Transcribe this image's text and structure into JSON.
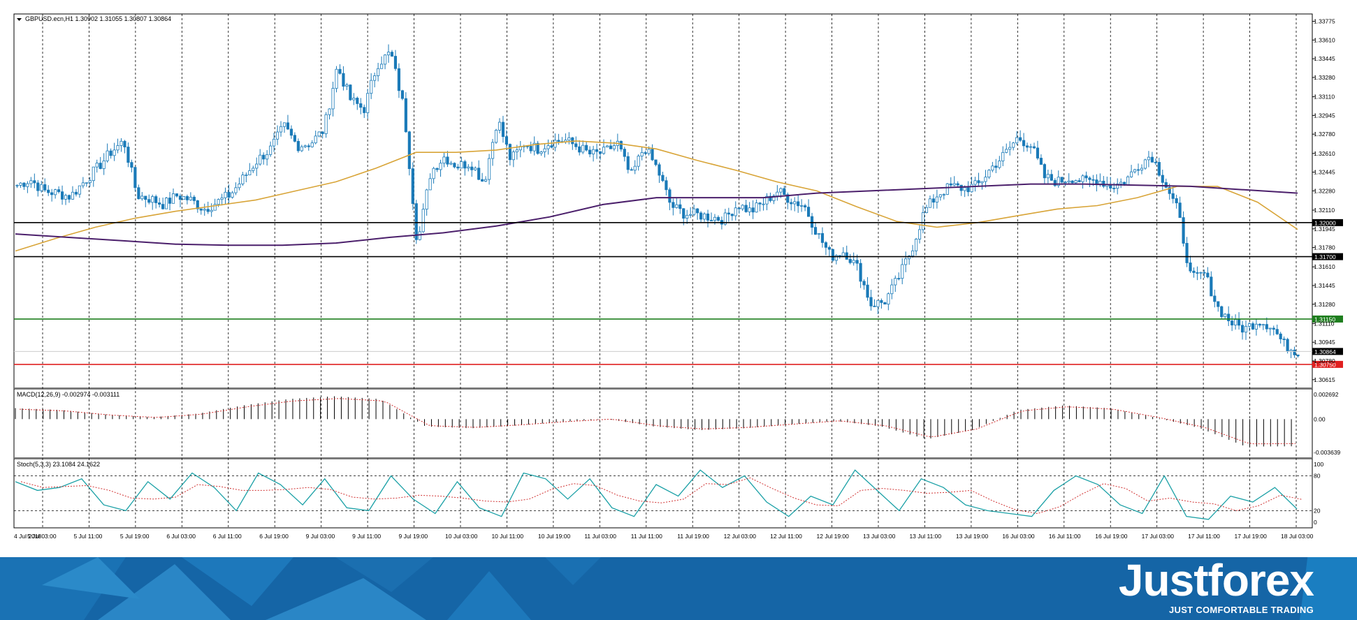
{
  "symbol_header": "GBPUSD.ecn,H1  1.30902 1.31055 1.30807 1.30864",
  "colors": {
    "bull": "#ffffff",
    "bear": "#1a7ab8",
    "candle_outline": "#1a7ab8",
    "ma_fast": "#d8a437",
    "ma_slow": "#4b1f6b",
    "macd_hist": "#000000",
    "macd_signal": "#d03030",
    "stoch_main": "#1aa0a6",
    "stoch_signal": "#d03030",
    "level_black": "#000000",
    "level_green": "#1e7e1e",
    "level_red": "#e02020",
    "current_price": "#cccccc",
    "footer_blue": "#1567a8"
  },
  "chart_data": {
    "type": "candlestick",
    "price_axis": {
      "range": [
        1.3054,
        1.3384
      ],
      "ticks": [
        "1.33775",
        "1.33610",
        "1.33445",
        "1.33280",
        "1.33110",
        "1.32945",
        "1.32780",
        "1.32610",
        "1.32445",
        "1.32280",
        "1.32110",
        "1.31945",
        "1.31780",
        "1.31610",
        "1.31445",
        "1.31280",
        "1.31110",
        "1.30945",
        "1.30780",
        "1.30615"
      ]
    },
    "time_labels": [
      "4 Jul 2018",
      "5 Jul 03:00",
      "5 Jul 11:00",
      "5 Jul 19:00",
      "6 Jul 03:00",
      "6 Jul 11:00",
      "6 Jul 19:00",
      "9 Jul 03:00",
      "9 Jul 11:00",
      "9 Jul 19:00",
      "10 Jul 03:00",
      "10 Jul 11:00",
      "10 Jul 19:00",
      "11 Jul 03:00",
      "11 Jul 11:00",
      "11 Jul 19:00",
      "12 Jul 03:00",
      "12 Jul 11:00",
      "12 Jul 19:00",
      "13 Jul 03:00",
      "13 Jul 11:00",
      "13 Jul 19:00",
      "16 Jul 03:00",
      "16 Jul 11:00",
      "16 Jul 19:00",
      "17 Jul 03:00",
      "17 Jul 11:00",
      "17 Jul 19:00",
      "18 Jul 03:00"
    ],
    "price_path": [
      1.3233,
      1.3238,
      1.3228,
      1.3226,
      1.3223,
      1.3236,
      1.3248,
      1.3262,
      1.3272,
      1.3224,
      1.3221,
      1.3216,
      1.3224,
      1.322,
      1.3212,
      1.3218,
      1.3225,
      1.324,
      1.3255,
      1.3265,
      1.3285,
      1.3268,
      1.327,
      1.3282,
      1.3338,
      1.3308,
      1.33,
      1.334,
      1.335,
      1.33,
      1.318,
      1.3245,
      1.3258,
      1.325,
      1.3253,
      1.3235,
      1.3292,
      1.3255,
      1.327,
      1.3265,
      1.3271,
      1.3273,
      1.3267,
      1.326,
      1.3262,
      1.327,
      1.324,
      1.3267,
      1.3247,
      1.3215,
      1.3208,
      1.3207,
      1.3205,
      1.3203,
      1.3216,
      1.321,
      1.3218,
      1.3228,
      1.322,
      1.3215,
      1.319,
      1.317,
      1.3175,
      1.316,
      1.3128,
      1.313,
      1.315,
      1.3175,
      1.321,
      1.3225,
      1.3232,
      1.323,
      1.3233,
      1.3248,
      1.326,
      1.3275,
      1.3268,
      1.324,
      1.3236,
      1.324,
      1.3236,
      1.3238,
      1.3232,
      1.3236,
      1.325,
      1.326,
      1.3236,
      1.321,
      1.315,
      1.3155,
      1.3125,
      1.3112,
      1.3106,
      1.3114,
      1.3109,
      1.3092,
      1.3086
    ],
    "ma_fast": [
      1.3175,
      1.3186,
      1.3196,
      1.3204,
      1.321,
      1.3215,
      1.322,
      1.3228,
      1.3236,
      1.3248,
      1.3262,
      1.3262,
      1.3264,
      1.3269,
      1.3272,
      1.327,
      1.3265,
      1.3255,
      1.3246,
      1.3236,
      1.3228,
      1.3214,
      1.3201,
      1.3196,
      1.32,
      1.3206,
      1.3212,
      1.3215,
      1.3222,
      1.3232,
      1.3232,
      1.3218,
      1.3194
    ],
    "ma_slow": [
      1.319,
      1.3187,
      1.3184,
      1.3181,
      1.318,
      1.318,
      1.3182,
      1.3187,
      1.3191,
      1.3197,
      1.3205,
      1.3216,
      1.3222,
      1.3222,
      1.3222,
      1.3226,
      1.3228,
      1.323,
      1.3232,
      1.3234,
      1.3234,
      1.3233,
      1.3232,
      1.3229,
      1.3226
    ],
    "levels": [
      {
        "label": "1.32000",
        "value": 1.32,
        "color": "black"
      },
      {
        "label": "1.31700",
        "value": 1.317,
        "color": "black"
      },
      {
        "label": "1.31150",
        "value": 1.3115,
        "color": "green"
      },
      {
        "label": "1.30864",
        "value": 1.30864,
        "color": "current"
      },
      {
        "label": "1.30750",
        "value": 1.3075,
        "color": "red"
      }
    ],
    "macd": {
      "label": "MACD(12,26,9) -0.002974 -0.003111",
      "ticks": [
        "0.002692",
        "0.00",
        "-0.003639"
      ],
      "range": [
        -0.003639,
        0.002692
      ],
      "hist": [
        0.0012,
        0.001,
        0.0005,
        0.0002,
        0.0006,
        0.0015,
        0.0022,
        0.0025,
        0.0022,
        -0.0008,
        -0.001,
        -0.0007,
        -0.0003,
        0.0,
        -0.0008,
        -0.0012,
        -0.001,
        -0.0006,
        -0.0002,
        -0.0008,
        -0.0022,
        -0.0012,
        0.001,
        0.0015,
        0.0012,
        0.0002,
        -0.001,
        -0.003,
        -0.00297
      ]
    },
    "stoch": {
      "label": "Stoch(5,3,3) 23.1084 24.1622",
      "ticks": [
        "100",
        "80",
        "20",
        "0"
      ],
      "range": [
        0,
        100
      ],
      "main": [
        70,
        55,
        60,
        75,
        30,
        20,
        70,
        40,
        85,
        60,
        20,
        85,
        65,
        30,
        75,
        25,
        20,
        80,
        40,
        15,
        70,
        25,
        10,
        85,
        75,
        40,
        75,
        25,
        10,
        65,
        45,
        90,
        60,
        80,
        35,
        10,
        45,
        30,
        90,
        55,
        20,
        75,
        60,
        30,
        20,
        15,
        10,
        55,
        80,
        65,
        30,
        15,
        80,
        10,
        5,
        45,
        35,
        60,
        23
      ]
    }
  },
  "brand": {
    "name": "Justforex",
    "slogan": "JUST COMFORTABLE TRADING"
  }
}
